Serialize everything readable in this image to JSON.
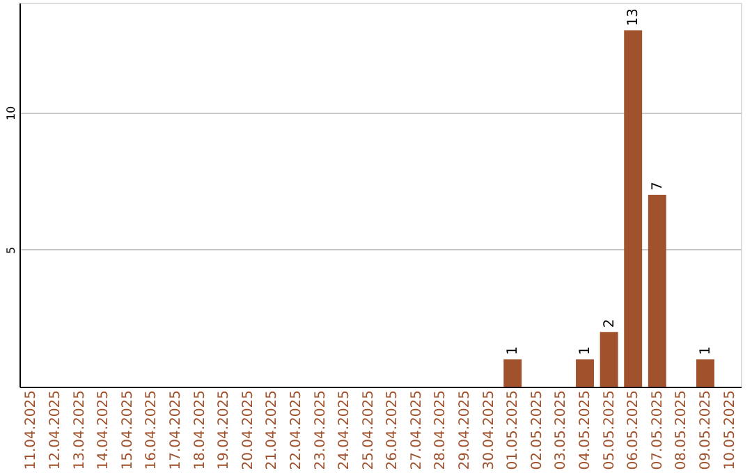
{
  "chart_data": {
    "type": "bar",
    "categories": [
      "11.04.2025",
      "12.04.2025",
      "13.04.2025",
      "14.04.2025",
      "15.04.2025",
      "16.04.2025",
      "17.04.2025",
      "18.04.2025",
      "19.04.2025",
      "20.04.2025",
      "21.04.2025",
      "22.04.2025",
      "23.04.2025",
      "24.04.2025",
      "25.04.2025",
      "26.04.2025",
      "27.04.2025",
      "28.04.2025",
      "29.04.2025",
      "30.04.2025",
      "01.05.2025",
      "02.05.2025",
      "03.05.2025",
      "04.05.2025",
      "05.05.2025",
      "06.05.2025",
      "07.05.2025",
      "08.05.2025",
      "09.05.2025",
      "10.05.2025"
    ],
    "values": [
      null,
      null,
      null,
      null,
      null,
      null,
      null,
      null,
      null,
      null,
      null,
      null,
      null,
      null,
      null,
      null,
      null,
      null,
      null,
      null,
      1,
      null,
      null,
      1,
      2,
      13,
      7,
      null,
      1,
      null
    ],
    "value_labels": [
      null,
      null,
      null,
      null,
      null,
      null,
      null,
      null,
      null,
      null,
      null,
      null,
      null,
      null,
      null,
      null,
      null,
      null,
      null,
      null,
      "1",
      null,
      null,
      "1",
      "2",
      "13",
      "7",
      null,
      "1",
      null
    ],
    "color": "#a0522d",
    "ylim": [
      0,
      14
    ],
    "yticks": [
      5,
      10
    ],
    "grid": "y"
  }
}
